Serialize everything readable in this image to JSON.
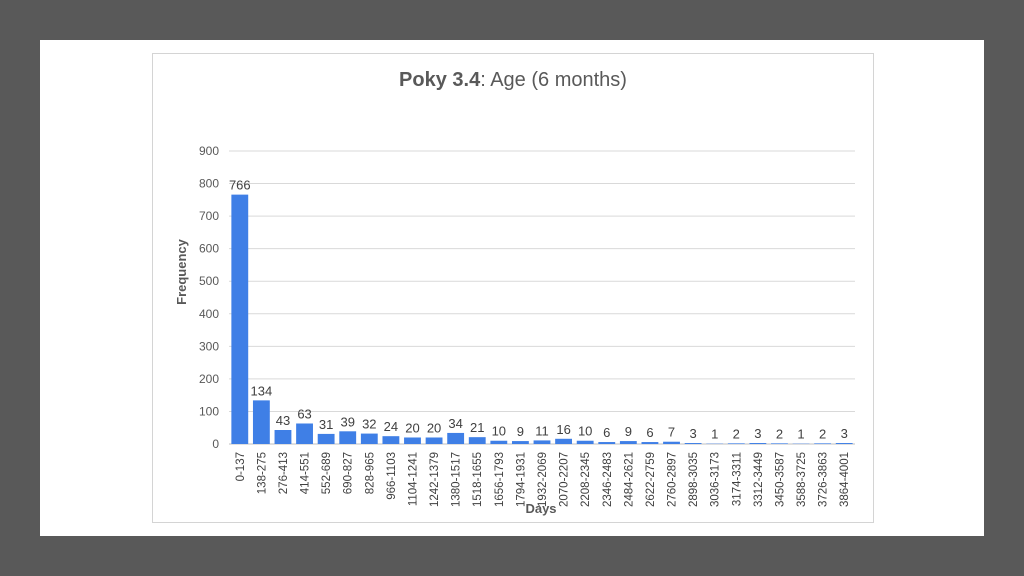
{
  "chart_data": {
    "type": "bar",
    "title_bold": "Poky 3.4",
    "title_rest": ": Age (6 months)",
    "xlabel": "Days",
    "ylabel": "Frequency",
    "ylim": [
      0,
      900
    ],
    "yticks": [
      0,
      100,
      200,
      300,
      400,
      500,
      600,
      700,
      800,
      900
    ],
    "grid": true,
    "legend": false,
    "bar_color": "#3f7fe6",
    "categories": [
      "0-137",
      "138-275",
      "276-413",
      "414-551",
      "552-689",
      "690-827",
      "828-965",
      "966-1103",
      "1104-1241",
      "1242-1379",
      "1380-1517",
      "1518-1655",
      "1656-1793",
      "1794-1931",
      "1932-2069",
      "2070-2207",
      "2208-2345",
      "2346-2483",
      "2484-2621",
      "2622-2759",
      "2760-2897",
      "2898-3035",
      "3036-3173",
      "3174-3311",
      "3312-3449",
      "3450-3587",
      "3588-3725",
      "3726-3863",
      "3864-4001"
    ],
    "values": [
      766,
      134,
      43,
      63,
      31,
      39,
      32,
      24,
      20,
      20,
      34,
      21,
      10,
      9,
      11,
      16,
      10,
      6,
      9,
      6,
      7,
      3,
      1,
      2,
      3,
      2,
      1,
      2,
      3
    ]
  }
}
